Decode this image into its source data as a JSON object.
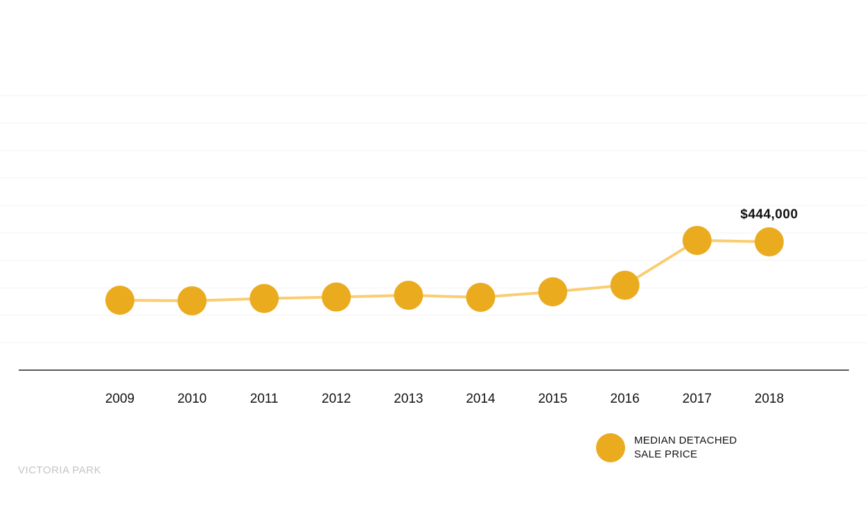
{
  "chart_data": {
    "type": "line",
    "categories": [
      "2009",
      "2010",
      "2011",
      "2012",
      "2013",
      "2014",
      "2015",
      "2016",
      "2017",
      "2018"
    ],
    "series": [
      {
        "name": "MEDIAN DETACHED SALE PRICE",
        "values": [
          242000,
          240000,
          248000,
          253000,
          259000,
          252000,
          271000,
          294000,
          449000,
          444000
        ]
      }
    ],
    "ylim": [
      0,
      950000
    ],
    "grid": true,
    "annotations": [
      {
        "category": "2018",
        "text": "$444,000"
      }
    ],
    "legend": {
      "position": "bottom-right",
      "lines": [
        "MEDIAN DETACHED",
        "SALE PRICE"
      ]
    },
    "colors": {
      "point": "#ebab1f",
      "line": "#f9cd72",
      "gridline": "#f2f2f2",
      "baseline": "#222222"
    }
  },
  "footer": "VICTORIA PARK"
}
